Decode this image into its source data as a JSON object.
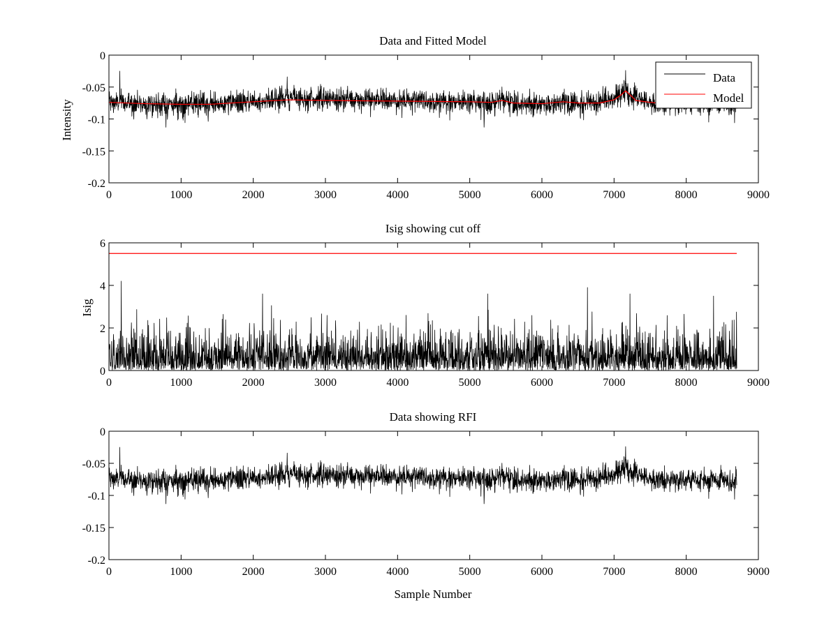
{
  "chart_data": [
    {
      "type": "line",
      "title": "Data and Fitted Model",
      "xlabel": "",
      "ylabel": "Intensity",
      "xlim": [
        0,
        9000
      ],
      "ylim": [
        -0.2,
        0
      ],
      "xticks": [
        "0",
        "1000",
        "2000",
        "3000",
        "4000",
        "5000",
        "6000",
        "7000",
        "8000",
        "9000"
      ],
      "yticks": [
        "0",
        "-0.05",
        "-0.1",
        "-0.15",
        "-0.2"
      ],
      "legend": {
        "placement": "top-right",
        "entries": [
          "Data",
          "Model"
        ]
      },
      "x_range": [
        0,
        8700
      ],
      "series": [
        {
          "name": "Data",
          "color": "#000000",
          "kind": "noisy-trace",
          "baseline": [
            [
              0,
              -0.074
            ],
            [
              700,
              -0.077
            ],
            [
              1400,
              -0.078
            ],
            [
              2000,
              -0.072
            ],
            [
              2500,
              -0.066
            ],
            [
              3000,
              -0.069
            ],
            [
              4000,
              -0.071
            ],
            [
              5000,
              -0.072
            ],
            [
              6000,
              -0.076
            ],
            [
              6800,
              -0.074
            ],
            [
              7100,
              -0.062
            ],
            [
              7160,
              -0.055
            ],
            [
              7250,
              -0.065
            ],
            [
              7500,
              -0.075
            ],
            [
              8000,
              -0.076
            ],
            [
              8700,
              -0.076
            ]
          ],
          "noise_sd": 0.009,
          "extremes": [
            [
              150,
              -0.025
            ],
            [
              2470,
              -0.034
            ],
            [
              7160,
              -0.024
            ],
            [
              5200,
              -0.113
            ],
            [
              790,
              -0.113
            ],
            [
              8670,
              -0.106
            ]
          ]
        },
        {
          "name": "Model",
          "color": "#ff0000",
          "kind": "line",
          "x": [
            0,
            500,
            1000,
            1400,
            2000,
            2500,
            3000,
            4000,
            5000,
            5300,
            5450,
            5600,
            6000,
            6300,
            6500,
            6800,
            7000,
            7100,
            7160,
            7220,
            7300,
            7500,
            7600
          ],
          "y": [
            -0.074,
            -0.076,
            -0.077,
            -0.077,
            -0.073,
            -0.07,
            -0.071,
            -0.072,
            -0.073,
            -0.074,
            -0.071,
            -0.075,
            -0.076,
            -0.073,
            -0.075,
            -0.075,
            -0.07,
            -0.062,
            -0.056,
            -0.062,
            -0.071,
            -0.074,
            -0.075
          ]
        }
      ]
    },
    {
      "type": "line",
      "title": "Isig showing cut off",
      "xlabel": "",
      "ylabel": "Isig",
      "xlim": [
        0,
        9000
      ],
      "ylim": [
        0,
        6
      ],
      "xticks": [
        "0",
        "1000",
        "2000",
        "3000",
        "4000",
        "5000",
        "6000",
        "7000",
        "8000",
        "9000"
      ],
      "yticks": [
        "0",
        "2",
        "4",
        "6"
      ],
      "x_range": [
        0,
        8700
      ],
      "series": [
        {
          "name": "",
          "color": "#000000",
          "kind": "noisy-abs",
          "noise_sd": 0.85,
          "extremes": [
            [
              170,
              4.2
            ],
            [
              2130,
              3.6
            ],
            [
              5250,
              3.6
            ],
            [
              6630,
              3.9
            ],
            [
              7220,
              3.6
            ],
            [
              8380,
              3.5
            ]
          ]
        },
        {
          "name": "",
          "color": "#ff0000",
          "kind": "line",
          "x": [
            0,
            8700
          ],
          "y": [
            5.5,
            5.5
          ]
        }
      ]
    },
    {
      "type": "line",
      "title": "Data showing RFI",
      "xlabel": "Sample Number",
      "ylabel": "",
      "xlim": [
        0,
        9000
      ],
      "ylim": [
        -0.2,
        0
      ],
      "xticks": [
        "0",
        "1000",
        "2000",
        "3000",
        "4000",
        "5000",
        "6000",
        "7000",
        "8000",
        "9000"
      ],
      "yticks": [
        "0",
        "-0.05",
        "-0.1",
        "-0.15",
        "-0.2"
      ],
      "x_range": [
        0,
        8700
      ],
      "series": [
        {
          "name": "",
          "color": "#000000",
          "kind": "noisy-trace",
          "baseline": [
            [
              0,
              -0.074
            ],
            [
              700,
              -0.077
            ],
            [
              1400,
              -0.078
            ],
            [
              2000,
              -0.072
            ],
            [
              2500,
              -0.066
            ],
            [
              3000,
              -0.069
            ],
            [
              4000,
              -0.071
            ],
            [
              5000,
              -0.072
            ],
            [
              6000,
              -0.076
            ],
            [
              6800,
              -0.074
            ],
            [
              7100,
              -0.062
            ],
            [
              7160,
              -0.055
            ],
            [
              7250,
              -0.065
            ],
            [
              7500,
              -0.075
            ],
            [
              8000,
              -0.076
            ],
            [
              8700,
              -0.076
            ]
          ],
          "noise_sd": 0.009,
          "extremes": [
            [
              150,
              -0.025
            ],
            [
              2470,
              -0.034
            ],
            [
              7160,
              -0.024
            ],
            [
              5200,
              -0.113
            ],
            [
              790,
              -0.113
            ],
            [
              8670,
              -0.106
            ]
          ]
        }
      ]
    }
  ]
}
